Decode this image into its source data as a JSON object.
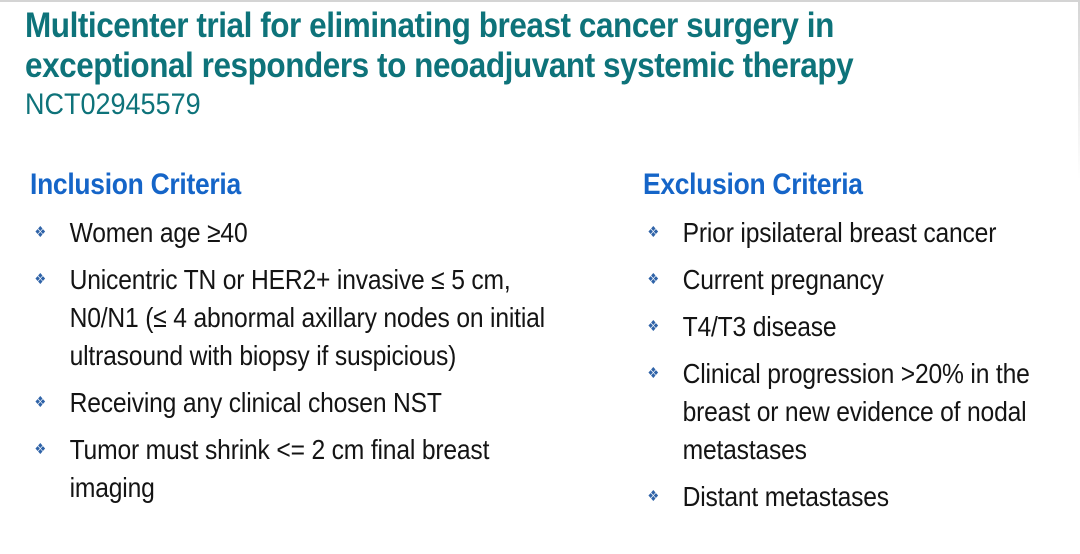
{
  "title": {
    "lines": [
      "Multicenter trial for eliminating breast cancer surgery in",
      "exceptional responders to neoadjuvant systemic therapy"
    ],
    "trial_id": "NCT02945579"
  },
  "bullet_glyph": "❖",
  "colors": {
    "title_teal": "#0E737A",
    "heading_blue": "#1565C8",
    "bullet_blue": "#2F63A8",
    "body_text": "#141414",
    "border_gray": "#D4D4D4"
  },
  "inclusion": {
    "heading": "Inclusion Criteria",
    "items": [
      "Women age ≥40",
      "Unicentric TN or HER2+ invasive ≤ 5 cm, N0/N1 (≤ 4 abnormal axillary nodes on initial ultrasound with biopsy if suspicious)",
      "Receiving any clinical chosen NST",
      "Tumor must shrink <= 2 cm final breast imaging"
    ]
  },
  "exclusion": {
    "heading": "Exclusion Criteria",
    "items": [
      "Prior ipsilateral breast cancer",
      "Current pregnancy",
      "T4/T3 disease",
      "Clinical progression >20% in the breast or new evidence of nodal metastases",
      "Distant metastases"
    ]
  }
}
